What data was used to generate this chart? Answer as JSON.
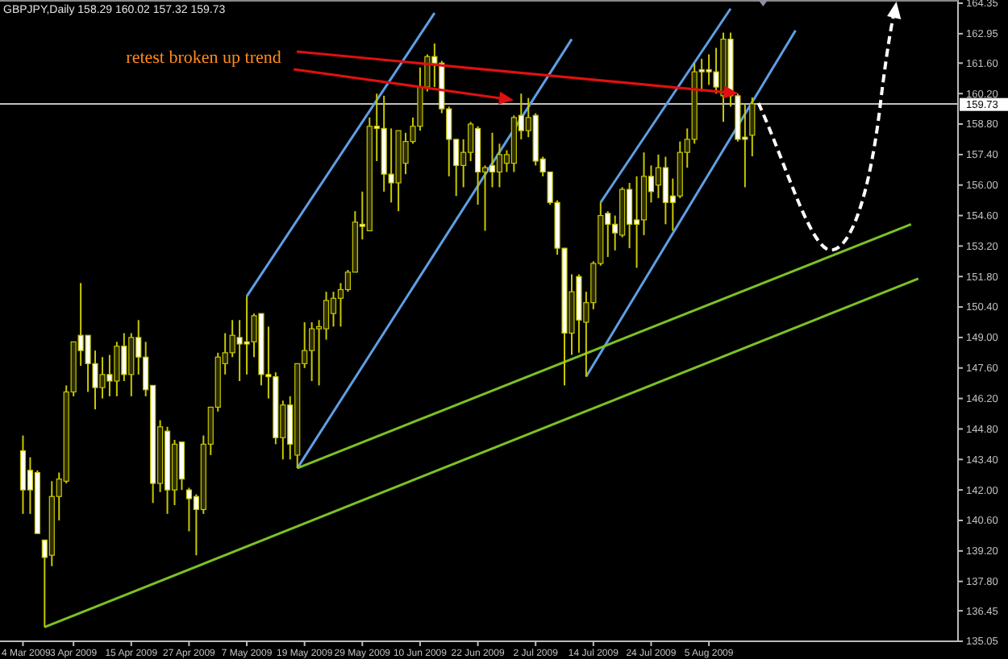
{
  "chart_data": {
    "type": "candlestick",
    "title": "GBPJPY,Daily 158.29 160.02 157.32 159.73",
    "annotations": [
      {
        "text": "retest broken up trend",
        "y": 159.9
      }
    ],
    "categories": [
      "4 Mar 2009",
      null,
      null,
      null,
      null,
      null,
      null,
      "3 Apr 2009",
      null,
      null,
      null,
      null,
      null,
      null,
      null,
      "15 Apr 2009",
      null,
      null,
      null,
      null,
      null,
      null,
      null,
      "27 Apr 2009",
      null,
      null,
      null,
      null,
      null,
      null,
      null,
      "7 May 2009",
      null,
      null,
      null,
      null,
      null,
      null,
      null,
      "19 May 2009",
      null,
      null,
      null,
      null,
      null,
      null,
      null,
      "29 May 2009",
      null,
      null,
      null,
      null,
      null,
      null,
      null,
      "10 Jun 2009",
      null,
      null,
      null,
      null,
      null,
      null,
      null,
      "22 Jun 2009",
      null,
      null,
      null,
      null,
      null,
      null,
      null,
      "2 Jul 2009",
      null,
      null,
      null,
      null,
      null,
      null,
      null,
      "14 Jul 2009",
      null,
      null,
      null,
      null,
      null,
      null,
      null,
      "24 Jul 2009",
      null,
      null,
      null,
      null,
      null,
      null,
      null,
      "5 Aug 2009",
      null,
      null,
      null,
      null,
      null,
      null,
      null,
      null,
      null,
      null,
      null,
      null,
      null,
      null,
      null,
      null,
      null,
      null,
      null,
      null,
      null,
      null,
      null,
      null,
      null,
      null,
      null,
      null,
      null,
      null,
      null,
      null,
      null,
      null
    ],
    "ylim": [
      135.05,
      164.35
    ],
    "yticks": [
      164.35,
      162.95,
      {
        "value": 161.6,
        "label": "161.60"
      },
      {
        "value": 160.2,
        "label": "160.20"
      },
      {
        "value": 158.8,
        "label": "158.80"
      },
      {
        "value": 157.4,
        "label": "157.40"
      },
      {
        "value": 156,
        "label": "156.00"
      },
      {
        "value": 154.6,
        "label": "154.60"
      },
      {
        "value": 153.2,
        "label": "153.20"
      },
      {
        "value": 151.8,
        "label": "151.80"
      },
      {
        "value": 150.4,
        "label": "150.40"
      },
      {
        "value": 149,
        "label": "149.00"
      },
      {
        "value": 147.6,
        "label": "147.60"
      },
      {
        "value": 146.2,
        "label": "146.20"
      },
      {
        "value": 144.8,
        "label": "144.80"
      },
      {
        "value": 143.4,
        "label": "143.40"
      },
      {
        "value": 142,
        "label": "142.00"
      },
      {
        "value": 140.6,
        "label": "140.60"
      },
      {
        "value": 139.2,
        "label": "139.20"
      },
      {
        "value": 137.8,
        "label": "137.80"
      },
      136.45,
      135.05
    ],
    "ref_lines": [
      {
        "axis": "y",
        "value": 159.73,
        "label": "159.73",
        "color": "#c0c0c0"
      }
    ],
    "series": [
      {
        "ohlc": [
          [
            143.8,
            144.5,
            140.9,
            142.0
          ],
          [
            142.9,
            143.5,
            140.9,
            142.0
          ],
          [
            142.8,
            142.9,
            140.0,
            140.0
          ],
          [
            139.7,
            139.7,
            135.7,
            138.9
          ],
          [
            139.0,
            142.4,
            138.5,
            141.7
          ],
          [
            141.7,
            142.8,
            140.6,
            142.5
          ],
          [
            142.4,
            146.8,
            142.3,
            146.5
          ],
          [
            146.5,
            148.8,
            146.3,
            148.8
          ],
          [
            149.1,
            151.5,
            147.7,
            148.4
          ],
          [
            149.1,
            149.1,
            146.5,
            147.8
          ],
          [
            147.8,
            148.4,
            145.7,
            146.7
          ],
          [
            146.7,
            148.1,
            146.2,
            147.3
          ],
          [
            147.3,
            148.2,
            146.3,
            147.0
          ],
          [
            147.0,
            148.8,
            146.3,
            148.6
          ],
          [
            148.6,
            149.2,
            147.0,
            147.3
          ],
          [
            147.3,
            149.2,
            146.3,
            149.0
          ],
          [
            149.0,
            149.8,
            147.3,
            148.1
          ],
          [
            148.1,
            148.8,
            146.3,
            146.6
          ],
          [
            146.8,
            146.8,
            141.4,
            142.3
          ],
          [
            142.3,
            145.2,
            141.9,
            144.9
          ],
          [
            144.7,
            144.9,
            140.9,
            142.0
          ],
          [
            142.0,
            144.3,
            141.3,
            144.1
          ],
          [
            144.2,
            144.2,
            142.0,
            142.5
          ],
          [
            142.0,
            142.1,
            140.1,
            141.6
          ],
          [
            141.7,
            141.8,
            139.0,
            141.1
          ],
          [
            141.1,
            144.5,
            140.9,
            144.1
          ],
          [
            144.1,
            145.8,
            143.6,
            145.8
          ],
          [
            145.8,
            148.3,
            145.6,
            148.1
          ],
          [
            147.8,
            149.2,
            147.3,
            148.3
          ],
          [
            148.3,
            149.8,
            148.1,
            149.1
          ],
          [
            149.0,
            149.8,
            147.0,
            148.7
          ],
          [
            148.8,
            150.9,
            147.3,
            148.7
          ],
          [
            148.8,
            150.1,
            148.1,
            150.0
          ],
          [
            150.1,
            150.1,
            146.8,
            147.3
          ],
          [
            147.3,
            149.5,
            146.2,
            147.2
          ],
          [
            147.2,
            147.4,
            144.1,
            144.4
          ],
          [
            144.4,
            146.1,
            143.4,
            145.9
          ],
          [
            145.9,
            146.3,
            143.4,
            144.1
          ],
          [
            143.6,
            147.8,
            143.0,
            147.8
          ],
          [
            147.8,
            149.7,
            147.6,
            148.4
          ],
          [
            148.4,
            149.7,
            147.0,
            149.4
          ],
          [
            149.4,
            149.8,
            146.8,
            149.5
          ],
          [
            149.4,
            151.1,
            148.9,
            150.7
          ],
          [
            150.1,
            151.1,
            149.5,
            150.8
          ],
          [
            150.8,
            151.5,
            149.5,
            151.2
          ],
          [
            151.2,
            152.1,
            151.1,
            152.0
          ],
          [
            152.0,
            154.8,
            152.0,
            154.3
          ],
          [
            154.2,
            155.7,
            153.5,
            154.1
          ],
          [
            153.9,
            159.1,
            153.9,
            158.7
          ],
          [
            158.7,
            160.2,
            157.1,
            158.6
          ],
          [
            158.6,
            160.1,
            155.7,
            156.5
          ],
          [
            156.5,
            158.6,
            155.2,
            156.1
          ],
          [
            156.1,
            158.5,
            154.8,
            158.5
          ],
          [
            157.0,
            158.4,
            156.5,
            158.0
          ],
          [
            158.0,
            159.1,
            157.9,
            158.7
          ],
          [
            158.7,
            161.4,
            158.5,
            160.5
          ],
          [
            160.5,
            162.0,
            160.3,
            161.9
          ],
          [
            161.9,
            162.5,
            160.5,
            161.6
          ],
          [
            161.6,
            161.7,
            159.3,
            159.5
          ],
          [
            159.5,
            159.6,
            156.4,
            158.1
          ],
          [
            158.1,
            158.1,
            155.5,
            156.9
          ],
          [
            156.9,
            158.1,
            155.9,
            157.5
          ],
          [
            157.5,
            158.9,
            157.1,
            158.8
          ],
          [
            158.6,
            158.7,
            155.1,
            156.6
          ],
          [
            156.6,
            156.9,
            153.9,
            156.8
          ],
          [
            156.9,
            158.4,
            155.9,
            156.6
          ],
          [
            156.6,
            157.9,
            155.9,
            157.4
          ],
          [
            157.0,
            157.6,
            156.6,
            157.4
          ],
          [
            157.0,
            159.2,
            156.6,
            159.1
          ],
          [
            159.2,
            160.2,
            158.1,
            158.5
          ],
          [
            158.5,
            160.0,
            158.2,
            159.1
          ],
          [
            159.2,
            159.3,
            156.9,
            157.1
          ],
          [
            157.2,
            157.3,
            156.4,
            156.6
          ],
          [
            156.6,
            156.6,
            155.1,
            155.2
          ],
          [
            155.2,
            155.3,
            152.8,
            153.1
          ],
          [
            153.1,
            153.1,
            146.8,
            149.2
          ],
          [
            149.2,
            151.9,
            148.2,
            151.1
          ],
          [
            151.8,
            151.9,
            148.3,
            149.8
          ],
          [
            149.7,
            151.1,
            147.2,
            150.6
          ],
          [
            150.6,
            152.5,
            150.3,
            152.4
          ],
          [
            152.4,
            155.2,
            152.3,
            154.6
          ],
          [
            154.7,
            154.8,
            152.7,
            154.2
          ],
          [
            154.2,
            154.6,
            153.0,
            153.8
          ],
          [
            153.7,
            155.9,
            153.6,
            155.8
          ],
          [
            155.8,
            156.1,
            153.1,
            154.2
          ],
          [
            154.4,
            156.4,
            152.2,
            154.2
          ],
          [
            154.4,
            157.5,
            153.7,
            156.4
          ],
          [
            156.4,
            156.9,
            155.2,
            155.7
          ],
          [
            156.0,
            157.4,
            155.4,
            156.8
          ],
          [
            156.8,
            157.3,
            154.2,
            155.2
          ],
          [
            155.5,
            156.3,
            153.9,
            155.2
          ],
          [
            155.5,
            158.0,
            155.4,
            157.5
          ],
          [
            157.5,
            158.6,
            156.8,
            158.1
          ],
          [
            158.1,
            161.6,
            157.9,
            161.2
          ],
          [
            161.3,
            161.8,
            160.3,
            161.2
          ],
          [
            161.3,
            162.0,
            160.6,
            161.2
          ],
          [
            161.2,
            162.3,
            160.2,
            160.5
          ],
          [
            160.1,
            163.0,
            158.9,
            162.7
          ],
          [
            162.7,
            163.0,
            159.6,
            160.1
          ],
          [
            160.1,
            160.2,
            158.0,
            158.1
          ],
          [
            158.2,
            159.7,
            155.9,
            158.1
          ],
          [
            158.29,
            160.02,
            157.32,
            159.73
          ],
          null,
          null,
          null,
          null,
          null,
          null,
          null,
          null,
          null,
          null,
          null,
          null,
          null,
          null,
          null,
          null,
          null,
          null,
          null,
          null,
          null,
          null,
          null,
          null,
          null,
          null,
          null,
          null
        ]
      },
      {
        "type": "line",
        "color": "#5e9fe6",
        "values": [
          null,
          null,
          null,
          null,
          null,
          null,
          null,
          null,
          null,
          null,
          null,
          null,
          null,
          null,
          null,
          null,
          null,
          null,
          null,
          null,
          null,
          null,
          null,
          null,
          null,
          null,
          null,
          null,
          null,
          null,
          null,
          null,
          null,
          null,
          null,
          null,
          null,
          null,
          143.0,
          null,
          null,
          null,
          null,
          null,
          null,
          null,
          null,
          null,
          null,
          null,
          null,
          null,
          null,
          null,
          null,
          null,
          null,
          null,
          null,
          null,
          null,
          null,
          null,
          null,
          null,
          null,
          null,
          null,
          null,
          null,
          null,
          null,
          null,
          null,
          null,
          null,
          162.7,
          null,
          null,
          null,
          null,
          null,
          null,
          null,
          null,
          null,
          null,
          null,
          null,
          null,
          null,
          null,
          null,
          null,
          null,
          null,
          null,
          null,
          null,
          null,
          null,
          null,
          null,
          null,
          null,
          null,
          null,
          null,
          null,
          null,
          null,
          null,
          null,
          null,
          null,
          null,
          null,
          null,
          null,
          null,
          null,
          null,
          null,
          null,
          null,
          null,
          null,
          null,
          null,
          null
        ]
      },
      {
        "type": "line",
        "color": "#5e9fe6",
        "values": [
          null,
          null,
          null,
          null,
          null,
          null,
          null,
          null,
          null,
          null,
          null,
          null,
          null,
          null,
          null,
          null,
          null,
          null,
          null,
          null,
          null,
          null,
          null,
          null,
          null,
          null,
          null,
          null,
          null,
          null,
          null,
          150.9,
          null,
          null,
          null,
          null,
          null,
          null,
          null,
          null,
          null,
          null,
          null,
          null,
          null,
          null,
          null,
          null,
          null,
          null,
          null,
          null,
          null,
          null,
          null,
          null,
          null,
          163.9,
          null,
          null,
          null,
          null,
          null,
          null,
          null,
          null,
          null,
          null,
          null,
          null,
          null,
          null,
          null,
          null,
          null,
          null,
          null,
          null,
          null,
          null,
          null,
          null,
          null,
          null,
          null,
          null,
          null,
          null,
          null,
          null,
          null,
          null,
          null,
          null,
          null,
          null,
          null,
          null,
          null,
          null,
          null,
          null,
          null,
          null,
          null,
          null,
          null,
          null,
          null,
          null,
          null,
          null,
          null,
          null,
          null,
          null,
          null,
          null,
          null,
          null,
          null,
          null,
          null,
          null,
          null,
          null,
          null,
          null,
          null,
          null
        ]
      },
      {
        "type": "line",
        "color": "#5e9fe6",
        "values": [
          null,
          null,
          null,
          null,
          null,
          null,
          null,
          null,
          null,
          null,
          null,
          null,
          null,
          null,
          null,
          null,
          null,
          null,
          null,
          null,
          null,
          null,
          null,
          null,
          null,
          null,
          null,
          null,
          null,
          null,
          null,
          null,
          null,
          null,
          null,
          null,
          null,
          null,
          null,
          null,
          null,
          null,
          null,
          null,
          null,
          null,
          null,
          null,
          null,
          null,
          null,
          null,
          null,
          null,
          null,
          null,
          null,
          null,
          null,
          null,
          null,
          null,
          null,
          null,
          null,
          null,
          null,
          null,
          null,
          null,
          null,
          null,
          null,
          null,
          null,
          null,
          null,
          null,
          null,
          null,
          155.2,
          null,
          null,
          null,
          null,
          null,
          null,
          null,
          null,
          null,
          null,
          null,
          null,
          null,
          null,
          null,
          null,
          null,
          164.1,
          null,
          null,
          null,
          null,
          null,
          null,
          null,
          null,
          null,
          null,
          null,
          null,
          null,
          null,
          null,
          null,
          null,
          null,
          null,
          null,
          null,
          null,
          null,
          null,
          null,
          null,
          null,
          null,
          null,
          null,
          null
        ]
      },
      {
        "type": "line",
        "color": "#5e9fe6",
        "values": [
          null,
          null,
          null,
          null,
          null,
          null,
          null,
          null,
          null,
          null,
          null,
          null,
          null,
          null,
          null,
          null,
          null,
          null,
          null,
          null,
          null,
          null,
          null,
          null,
          null,
          null,
          null,
          null,
          null,
          null,
          null,
          null,
          null,
          null,
          null,
          null,
          null,
          null,
          null,
          null,
          null,
          null,
          null,
          null,
          null,
          null,
          null,
          null,
          null,
          null,
          null,
          null,
          null,
          null,
          null,
          null,
          null,
          null,
          null,
          null,
          null,
          null,
          null,
          null,
          null,
          null,
          null,
          null,
          null,
          null,
          null,
          null,
          null,
          null,
          null,
          null,
          null,
          null,
          147.2,
          null,
          null,
          null,
          null,
          null,
          null,
          null,
          null,
          null,
          null,
          null,
          null,
          null,
          null,
          null,
          null,
          null,
          null,
          null,
          null,
          null,
          null,
          null,
          null,
          null,
          null,
          null,
          null,
          163.1,
          null,
          null,
          null,
          null,
          null,
          null,
          null,
          null,
          null,
          null,
          null,
          null,
          null,
          null,
          null,
          null,
          null,
          null,
          null,
          null,
          null,
          null
        ]
      },
      {
        "type": "line",
        "color": "#7cc223",
        "values": [
          null,
          null,
          null,
          135.7,
          null,
          null,
          null,
          null,
          null,
          null,
          null,
          null,
          null,
          null,
          null,
          null,
          null,
          null,
          null,
          null,
          null,
          null,
          null,
          null,
          null,
          null,
          null,
          null,
          null,
          null,
          null,
          null,
          null,
          null,
          null,
          null,
          null,
          null,
          null,
          null,
          null,
          null,
          null,
          null,
          null,
          null,
          null,
          null,
          null,
          null,
          null,
          null,
          null,
          null,
          null,
          null,
          null,
          null,
          null,
          null,
          null,
          null,
          null,
          null,
          null,
          null,
          null,
          null,
          null,
          null,
          null,
          null,
          null,
          null,
          null,
          null,
          null,
          null,
          null,
          null,
          null,
          null,
          null,
          null,
          null,
          null,
          null,
          null,
          null,
          null,
          null,
          null,
          null,
          null,
          null,
          null,
          null,
          null,
          null,
          null,
          null,
          null,
          null,
          null,
          null,
          null,
          null,
          null,
          null,
          null,
          null,
          null,
          null,
          null,
          null,
          null,
          null,
          null,
          null,
          null,
          null,
          null,
          null,
          null,
          151.7,
          null,
          null,
          null,
          null,
          null
        ]
      },
      {
        "type": "line",
        "color": "#7cc223",
        "values": [
          null,
          null,
          null,
          null,
          null,
          null,
          null,
          null,
          null,
          null,
          null,
          null,
          null,
          null,
          null,
          null,
          null,
          null,
          null,
          null,
          null,
          null,
          null,
          null,
          null,
          null,
          null,
          null,
          null,
          null,
          null,
          null,
          null,
          null,
          null,
          null,
          null,
          null,
          143.0,
          null,
          null,
          null,
          null,
          null,
          null,
          null,
          null,
          null,
          null,
          null,
          null,
          null,
          null,
          null,
          null,
          null,
          null,
          null,
          null,
          null,
          null,
          null,
          null,
          null,
          null,
          null,
          null,
          null,
          null,
          null,
          null,
          null,
          null,
          null,
          null,
          null,
          null,
          null,
          null,
          null,
          null,
          null,
          null,
          null,
          null,
          null,
          null,
          null,
          null,
          null,
          null,
          null,
          null,
          null,
          null,
          null,
          null,
          null,
          null,
          null,
          null,
          null,
          null,
          null,
          null,
          null,
          null,
          null,
          null,
          null,
          null,
          null,
          null,
          null,
          null,
          null,
          null,
          null,
          null,
          null,
          null,
          null,
          null,
          154.2,
          null,
          null,
          null,
          null,
          null,
          null
        ]
      }
    ]
  }
}
